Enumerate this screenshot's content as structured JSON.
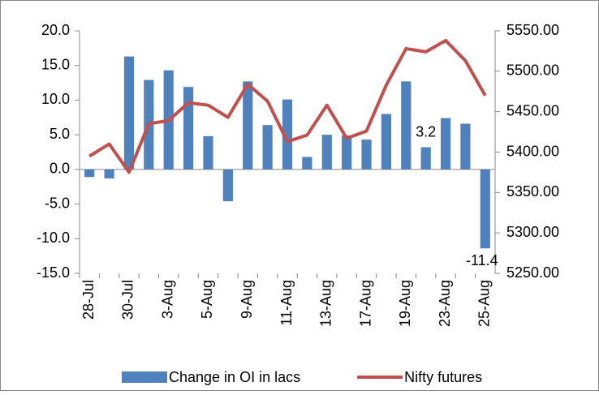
{
  "chart_data": {
    "type": "bar-line",
    "categories": [
      "28-Jul",
      null,
      "30-Jul",
      null,
      "3-Aug",
      null,
      "5-Aug",
      null,
      "9-Aug",
      null,
      "11-Aug",
      null,
      "13-Aug",
      null,
      "17-Aug",
      null,
      "19-Aug",
      null,
      "23-Aug",
      null,
      "25-Aug"
    ],
    "series": [
      {
        "name": "Change in OI in lacs",
        "type": "bar",
        "color": "#4f81bd",
        "values": [
          -1.1,
          -1.3,
          16.3,
          12.9,
          14.3,
          11.9,
          4.8,
          -4.6,
          12.7,
          6.4,
          10.1,
          1.8,
          5.0,
          4.9,
          4.3,
          8.0,
          12.7,
          3.2,
          7.4,
          6.6,
          -11.4
        ],
        "value_labels": [
          null,
          null,
          null,
          null,
          null,
          null,
          null,
          null,
          null,
          null,
          null,
          null,
          null,
          null,
          null,
          null,
          null,
          "3.2",
          null,
          null,
          "-11.4"
        ]
      },
      {
        "name": "Nifty futures",
        "type": "line",
        "axis": "y2",
        "color": "#c0504d",
        "values": [
          5395,
          5410,
          5375,
          5435,
          5439,
          5461,
          5458,
          5443,
          5484,
          5463,
          5413,
          5421,
          5458,
          5417,
          5426,
          5483,
          5528,
          5524,
          5538,
          5513,
          5470
        ]
      }
    ],
    "ylim": [
      -15,
      20
    ],
    "yticks": [
      {
        "value": -15,
        "label": "-15.0"
      },
      {
        "value": -10,
        "label": "-10.0"
      },
      {
        "value": -5,
        "label": "-5.0"
      },
      {
        "value": 0,
        "label": "0.0"
      },
      {
        "value": 5,
        "label": "5.0"
      },
      {
        "value": 10,
        "label": "10.0"
      },
      {
        "value": 15,
        "label": "15.0"
      },
      {
        "value": 20,
        "label": "20.0"
      }
    ],
    "y2lim": [
      5250,
      5550
    ],
    "y2ticks": [
      {
        "value": 5250,
        "label": "5250.00"
      },
      {
        "value": 5300,
        "label": "5300.00"
      },
      {
        "value": 5350,
        "label": "5350.00"
      },
      {
        "value": 5400,
        "label": "5400.00"
      },
      {
        "value": 5450,
        "label": "5450.00"
      },
      {
        "value": 5500,
        "label": "5500.00"
      },
      {
        "value": 5550,
        "label": "5550.00"
      }
    ],
    "legend": "bottom"
  }
}
